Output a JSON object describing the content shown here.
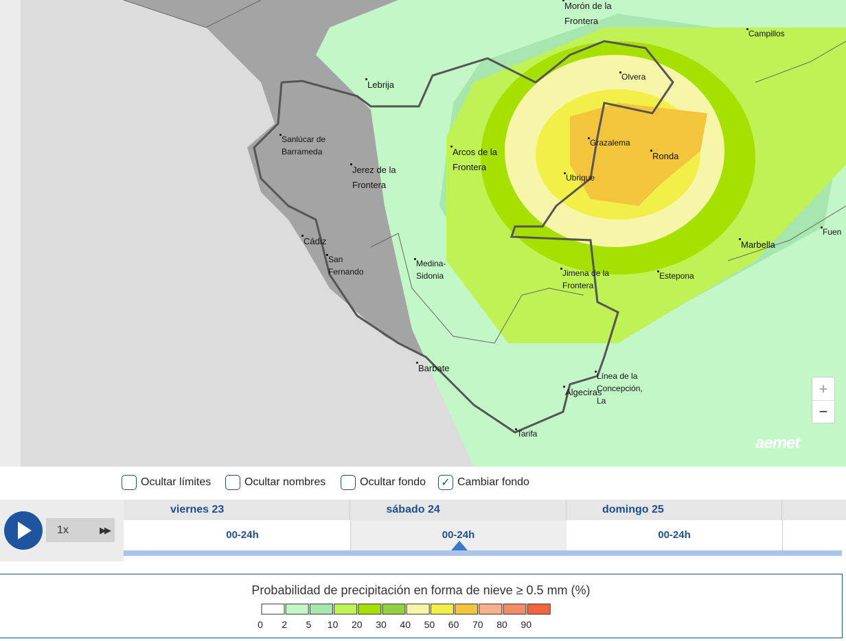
{
  "map": {
    "places": [
      "Morón de la Frontera",
      "Campillos",
      "Olvera",
      "Lebrija",
      "Sanlúcar de Barrameda",
      "Arcos de la Frontera",
      "Jerez de la Frontera",
      "Grazalema",
      "Ronda",
      "Ubrique",
      "Cádiz",
      "San Fernando",
      "Medina-Sidonia",
      "Jimena de la Frontera",
      "Estepona",
      "Marbella",
      "Fuen",
      "Barbate",
      "Línea de la Concepción, La",
      "Algeciras",
      "Tarifa"
    ],
    "zoom_in": "+",
    "zoom_out": "−",
    "brand": "aemet"
  },
  "controls": {
    "checkboxes": [
      {
        "label": "Ocultar límites",
        "checked": false
      },
      {
        "label": "Ocultar nombres",
        "checked": false
      },
      {
        "label": "Ocultar fondo",
        "checked": false
      },
      {
        "label": "Cambiar fondo",
        "checked": true
      }
    ],
    "speed": "1x"
  },
  "timeline": {
    "days": [
      {
        "day": "viernes 23",
        "period": "00-24h",
        "selected": false
      },
      {
        "day": "sábado 24",
        "period": "00-24h",
        "selected": true
      },
      {
        "day": "domingo 25",
        "period": "00-24h",
        "selected": false
      }
    ]
  },
  "legend": {
    "title": "Probabilidad de precipitación en forma de nieve ≥ 0.5 mm (%)",
    "colors": [
      "#ffffff",
      "#c4f7c8",
      "#a8e6b0",
      "#bff255",
      "#a5e000",
      "#93d040",
      "#f7f5a8",
      "#f2f048",
      "#f4c53c",
      "#f8b08c",
      "#f38b64",
      "#f26440"
    ],
    "ticks": [
      0,
      2,
      5,
      10,
      20,
      30,
      40,
      50,
      60,
      70,
      80,
      90
    ]
  }
}
